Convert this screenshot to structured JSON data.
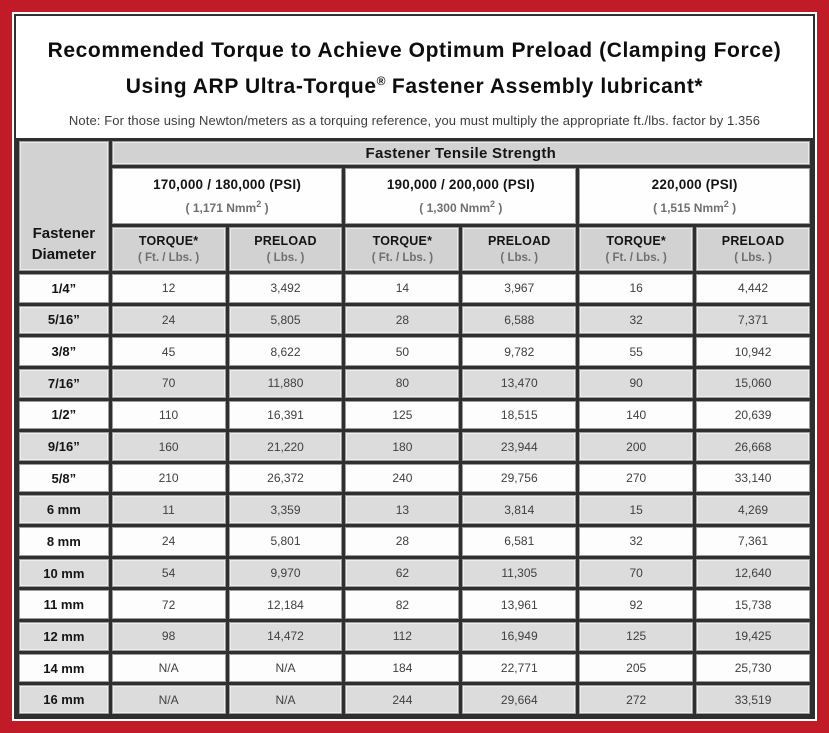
{
  "title": {
    "line1": "Recommended Torque to Achieve Optimum Preload (Clamping Force)",
    "line2_pre": "Using ARP Ultra-Torque",
    "line2_sup": "®",
    "line2_post": " Fastener Assembly lubricant*",
    "note": "Note: For those using Newton/meters as a torquing reference, you must multiply the appropriate ft./lbs. factor by 1.356"
  },
  "colors": {
    "frame_red": "#c11b27",
    "header_gray": "#d2d2d2",
    "alt_row_gray": "#dcdcdc"
  },
  "table": {
    "corner": {
      "line1": "Fastener",
      "line2": "Diameter"
    },
    "tensile_header": "Fastener Tensile Strength",
    "groups": [
      {
        "psi": "170,000 / 180,000 (PSI)",
        "nmm": "( 1,171 Nmm",
        "nmm_sup": "2",
        "nmm_close": " )",
        "torque_label": "TORQUE*",
        "torque_unit": "( Ft. / Lbs. )",
        "preload_label": "PRELOAD",
        "preload_unit": "( Lbs. )"
      },
      {
        "psi": "190,000 / 200,000 (PSI)",
        "nmm": "( 1,300 Nmm",
        "nmm_sup": "2",
        "nmm_close": " )",
        "torque_label": "TORQUE*",
        "torque_unit": "( Ft. / Lbs. )",
        "preload_label": "PRELOAD",
        "preload_unit": "( Lbs. )"
      },
      {
        "psi": "220,000 (PSI)",
        "nmm": "( 1,515 Nmm",
        "nmm_sup": "2",
        "nmm_close": " )",
        "torque_label": "TORQUE*",
        "torque_unit": "( Ft. / Lbs. )",
        "preload_label": "PRELOAD",
        "preload_unit": "( Lbs. )"
      }
    ],
    "rows": [
      {
        "d": "1/4”",
        "v": [
          "12",
          "3,492",
          "14",
          "3,967",
          "16",
          "4,442"
        ]
      },
      {
        "d": "5/16”",
        "v": [
          "24",
          "5,805",
          "28",
          "6,588",
          "32",
          "7,371"
        ]
      },
      {
        "d": "3/8”",
        "v": [
          "45",
          "8,622",
          "50",
          "9,782",
          "55",
          "10,942"
        ]
      },
      {
        "d": "7/16”",
        "v": [
          "70",
          "11,880",
          "80",
          "13,470",
          "90",
          "15,060"
        ]
      },
      {
        "d": "1/2”",
        "v": [
          "110",
          "16,391",
          "125",
          "18,515",
          "140",
          "20,639"
        ]
      },
      {
        "d": "9/16”",
        "v": [
          "160",
          "21,220",
          "180",
          "23,944",
          "200",
          "26,668"
        ]
      },
      {
        "d": "5/8”",
        "v": [
          "210",
          "26,372",
          "240",
          "29,756",
          "270",
          "33,140"
        ]
      },
      {
        "d": "6 mm",
        "v": [
          "11",
          "3,359",
          "13",
          "3,814",
          "15",
          "4,269"
        ]
      },
      {
        "d": "8 mm",
        "v": [
          "24",
          "5,801",
          "28",
          "6,581",
          "32",
          "7,361"
        ]
      },
      {
        "d": "10 mm",
        "v": [
          "54",
          "9,970",
          "62",
          "11,305",
          "70",
          "12,640"
        ]
      },
      {
        "d": "11 mm",
        "v": [
          "72",
          "12,184",
          "82",
          "13,961",
          "92",
          "15,738"
        ]
      },
      {
        "d": "12 mm",
        "v": [
          "98",
          "14,472",
          "112",
          "16,949",
          "125",
          "19,425"
        ]
      },
      {
        "d": "14 mm",
        "v": [
          "N/A",
          "N/A",
          "184",
          "22,771",
          "205",
          "25,730"
        ]
      },
      {
        "d": "16 mm",
        "v": [
          "N/A",
          "N/A",
          "244",
          "29,664",
          "272",
          "33,519"
        ]
      }
    ]
  }
}
